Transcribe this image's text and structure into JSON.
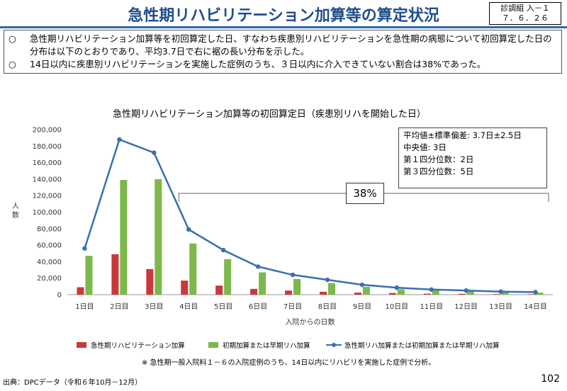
{
  "header": {
    "title": "急性期リハビリテーション加算等の算定状況",
    "doc_id_line1": "診調組 入－１",
    "doc_id_line2": "７．６．２６"
  },
  "summary": {
    "bullet": "○",
    "point1": "急性期リハビリテーション加算等を初回算定した日、すなわち疾患別リハビリテーションを急性期の病態について初回算定した日の分布は以下のとおりであり、平均3.7日で右に裾の長い分布を示した。",
    "point2": "14日以内に疾患別リハビリテーションを実施した症例のうち、３日以内に介入できていない割合は38%であった。"
  },
  "stats_box": {
    "line1": "平均値±標準偏差: 3.7日±2.5日",
    "line2": "中央値: 3日",
    "line3": "第１四分位数：2日",
    "line4": "第３四分位数：5日"
  },
  "bracket_label": "38%",
  "footer": {
    "note": "※ 急性期一般入院料１－６の入院症例のうち、14日以内にリハビリを実施した症例で分析。",
    "source": "出典：DPCデータ（令和６年10月－12月）",
    "page": "102"
  },
  "colors": {
    "red": "#c8393b",
    "green": "#7db84a",
    "blue": "#3a6fb0"
  },
  "chart_data": {
    "type": "bar",
    "title": "急性期リハビリテーション加算等の初回算定日（疾患別リハを開始した日）",
    "xlabel": "入院からの日数",
    "ylabel": "人数",
    "ylim": [
      0,
      200000
    ],
    "yticks": [
      "0",
      "20,000",
      "40,000",
      "60,000",
      "80,000",
      "100,000",
      "120,000",
      "140,000",
      "160,000",
      "180,000",
      "200,000"
    ],
    "categories": [
      "1日目",
      "2日目",
      "3日目",
      "4日目",
      "5日目",
      "6日目",
      "7日目",
      "8日目",
      "9日目",
      "10日目",
      "11日目",
      "12日目",
      "13日目",
      "14日目"
    ],
    "series": [
      {
        "name": "急性期リハビリテーション加算",
        "kind": "bar",
        "values": [
          9000,
          49000,
          31000,
          17000,
          11000,
          7000,
          5000,
          3500,
          2500,
          2000,
          1200,
          1000,
          700,
          600
        ]
      },
      {
        "name": "初期加算または早期リハ加算",
        "kind": "bar",
        "values": [
          47000,
          139000,
          140000,
          62000,
          43000,
          27000,
          19000,
          14000,
          9500,
          6500,
          5000,
          4000,
          3000,
          2500
        ]
      },
      {
        "name": "急性期リハ加算または初期加算または早期リハ加算",
        "kind": "line",
        "values": [
          56000,
          188000,
          172000,
          79000,
          54000,
          34000,
          24000,
          18000,
          12000,
          8500,
          6200,
          5000,
          3700,
          3100
        ]
      }
    ],
    "legend_position": "bottom",
    "grid": false
  }
}
